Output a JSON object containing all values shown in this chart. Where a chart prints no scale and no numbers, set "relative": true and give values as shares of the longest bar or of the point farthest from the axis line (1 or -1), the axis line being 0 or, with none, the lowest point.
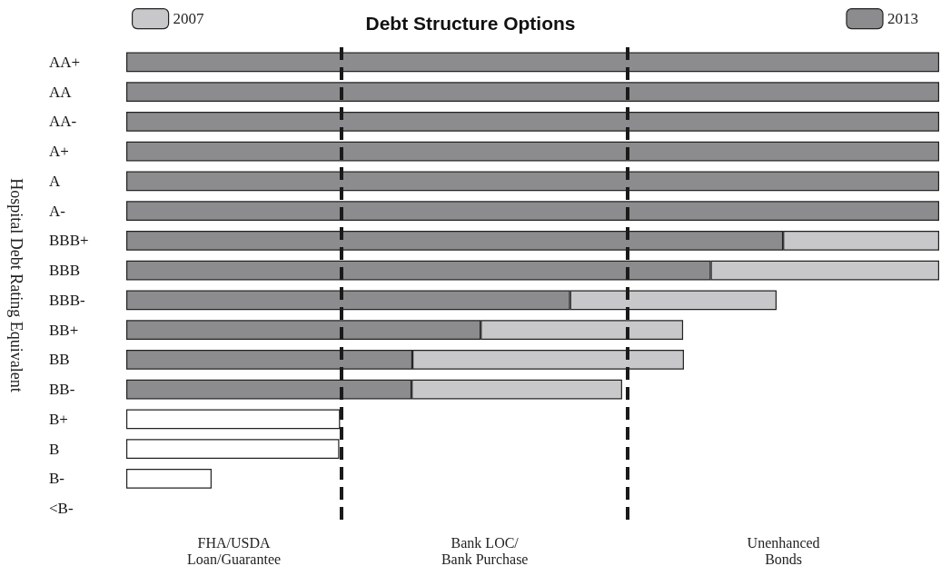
{
  "chart_data": {
    "type": "bar",
    "orientation": "horizontal",
    "stacked": true,
    "relative": true,
    "title": "Debt Structure Options",
    "ylabel": "Hospital Debt Rating Equivalent",
    "categories": [
      "AA+",
      "AA",
      "AA-",
      "A+",
      "A",
      "A-",
      "BBB+",
      "BBB",
      "BBB-",
      "BB+",
      "BB",
      "BB-",
      "B+",
      "B",
      "B-",
      "<B-"
    ],
    "series": [
      {
        "name": "2013",
        "color": "#8c8c8e",
        "values": [
          1,
          1,
          1,
          1,
          1,
          1,
          0.808,
          0.719,
          0.546,
          0.436,
          0.352,
          0.351,
          null,
          null,
          null,
          null
        ]
      },
      {
        "name": "2007",
        "color": "#c8c8ca",
        "values": [
          null,
          null,
          null,
          null,
          null,
          null,
          0.192,
          0.281,
          0.254,
          0.249,
          0.334,
          0.259,
          null,
          null,
          null,
          null
        ]
      },
      {
        "color": "#ffffff",
        "values": [
          null,
          null,
          null,
          null,
          null,
          null,
          null,
          null,
          null,
          null,
          null,
          null,
          0.263,
          0.262,
          0.105,
          null
        ]
      }
    ],
    "ref_lines": [
      {
        "axis": "x",
        "value": 0.265,
        "color": "#1a1a1a",
        "line_style": "dashed"
      },
      {
        "axis": "x",
        "value": 0.617,
        "color": "#1a1a1a",
        "line_style": "dashed"
      }
    ],
    "annotations": [
      "FHA/USDA\nLoan/Guarantee",
      "Bank LOC/\nBank Purchase",
      "Unenhanced\nBonds"
    ],
    "legend": "top"
  }
}
